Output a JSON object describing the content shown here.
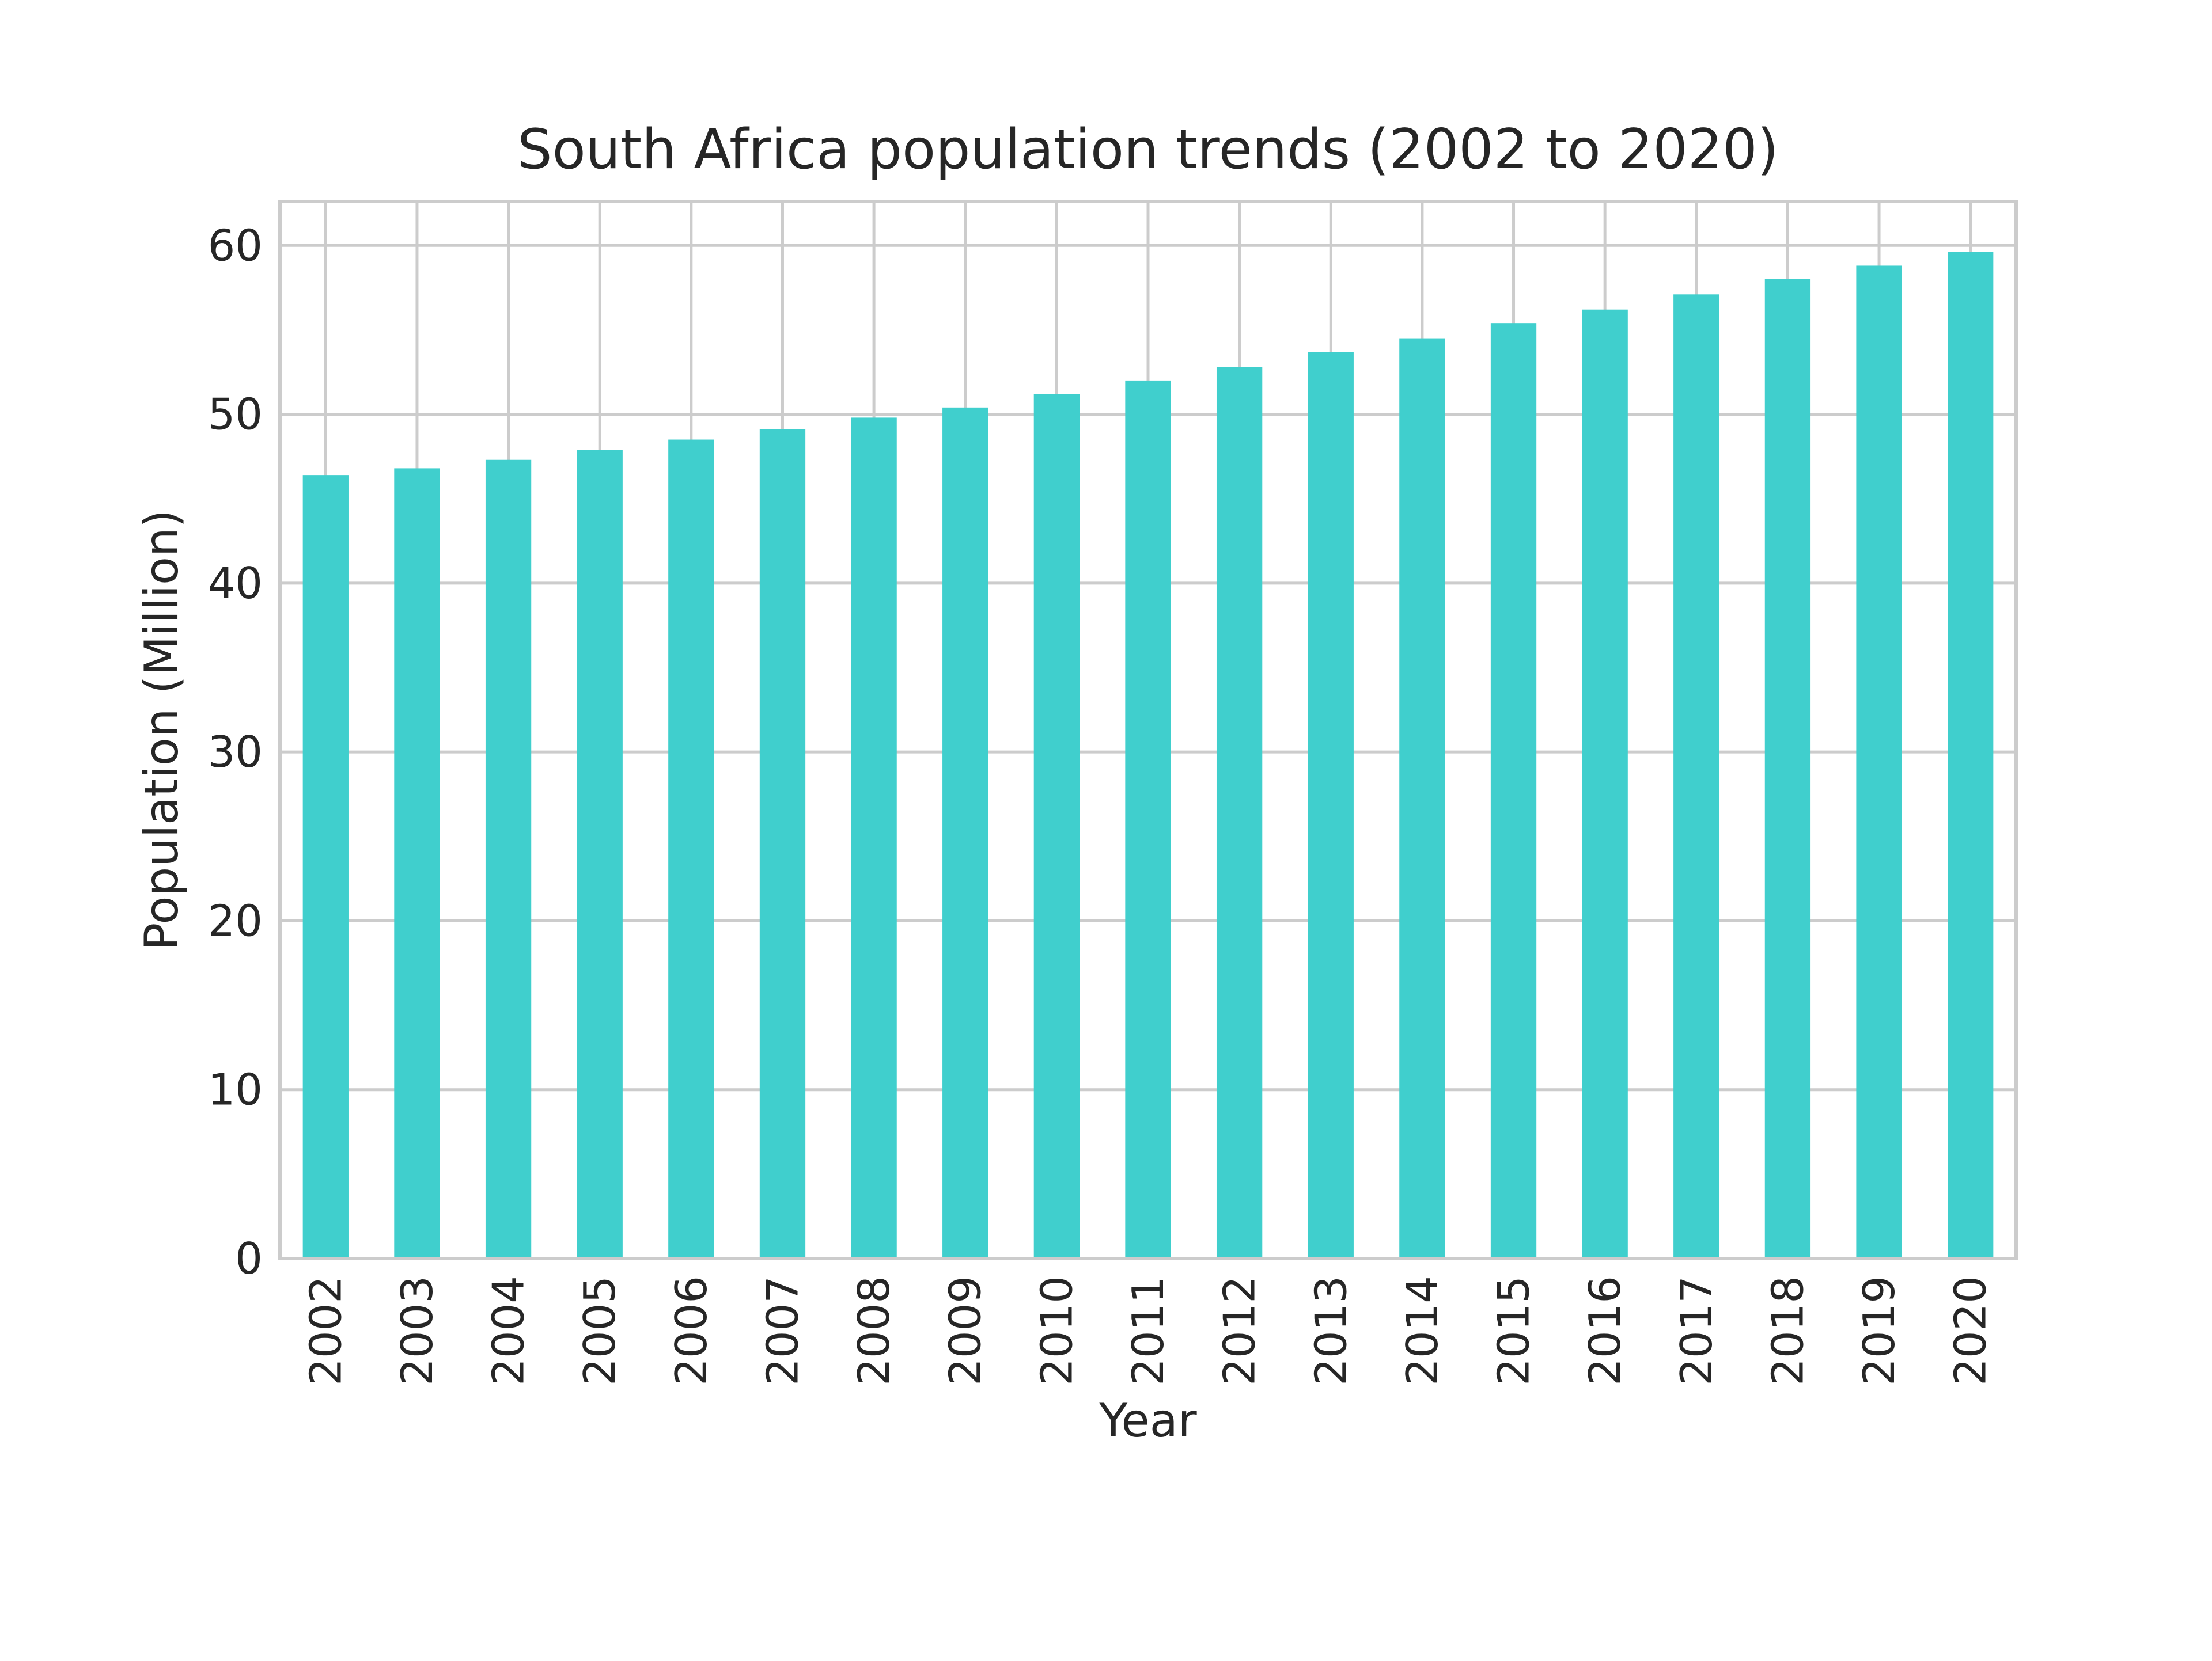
{
  "chart_data": {
    "type": "bar",
    "title": "South Africa population trends (2002 to 2020)",
    "xlabel": "Year",
    "ylabel": "Population (Million)",
    "categories": [
      "2002",
      "2003",
      "2004",
      "2005",
      "2006",
      "2007",
      "2008",
      "2009",
      "2010",
      "2011",
      "2012",
      "2013",
      "2014",
      "2015",
      "2016",
      "2017",
      "2018",
      "2019",
      "2020"
    ],
    "values": [
      46.4,
      46.8,
      47.3,
      47.9,
      48.5,
      49.1,
      49.8,
      50.4,
      51.2,
      52.0,
      52.8,
      53.7,
      54.5,
      55.4,
      56.2,
      57.1,
      58.0,
      58.8,
      59.6
    ],
    "yticks": [
      0,
      10,
      20,
      30,
      40,
      50,
      60
    ],
    "ylim": [
      0,
      62.6
    ],
    "grid": true,
    "bar_color": "#40CFCD",
    "grid_color": "#cccccc",
    "frame_color": "#cccccc",
    "text_color": "#262626"
  }
}
